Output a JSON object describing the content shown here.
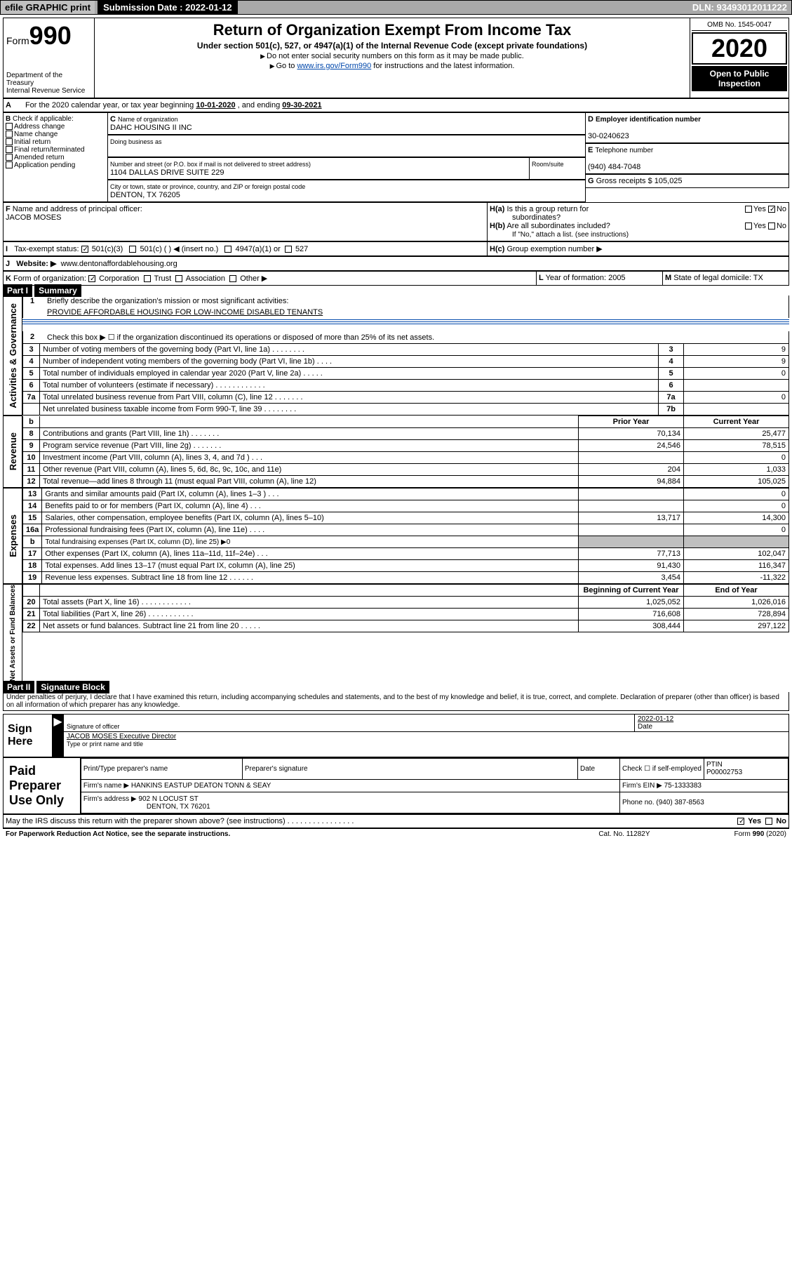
{
  "topbar": {
    "efile": "efile GRAPHIC print",
    "subdate_label": "Submission Date : ",
    "subdate": "2022-01-12",
    "dln_label": "DLN: ",
    "dln": "93493012011222"
  },
  "header": {
    "form_prefix": "Form",
    "form_num": "990",
    "dept1": "Department of the Treasury",
    "dept2": "Internal Revenue Service",
    "title": "Return of Organization Exempt From Income Tax",
    "sub": "Under section 501(c), 527, or 4947(a)(1) of the Internal Revenue Code (except private foundations)",
    "note1": "Do not enter social security numbers on this form as it may be made public.",
    "note2_pre": "Go to ",
    "note2_link": "www.irs.gov/Form990",
    "note2_post": " for instructions and the latest information.",
    "omb": "OMB No. 1545-0047",
    "year": "2020",
    "inspection": "Open to Public Inspection"
  },
  "A": {
    "text": "For the 2020 calendar year, or tax year beginning ",
    "begin": "10-01-2020",
    "mid": " , and ending ",
    "end": "09-30-2021"
  },
  "B": {
    "label": "Check if applicable:",
    "items": [
      "Address change",
      "Name change",
      "Initial return",
      "Final return/terminated",
      "Amended return",
      "Application pending"
    ]
  },
  "C": {
    "name_label": "Name of organization",
    "name": "DAHC HOUSING II INC",
    "dba_label": "Doing business as",
    "dba": "",
    "addr_label": "Number and street (or P.O. box if mail is not delivered to street address)",
    "room_label": "Room/suite",
    "addr": "1104 DALLAS DRIVE SUITE 229",
    "city_label": "City or town, state or province, country, and ZIP or foreign postal code",
    "city": "DENTON, TX  76205"
  },
  "D": {
    "label": "Employer identification number",
    "val": "30-0240623"
  },
  "E": {
    "label": "Telephone number",
    "val": "(940) 484-7048"
  },
  "G": {
    "label": "Gross receipts $",
    "val": "105,025"
  },
  "F": {
    "label": "Name and address of principal officer:",
    "name": "JACOB MOSES"
  },
  "H": {
    "a": "Is this a group return for",
    "a2": "subordinates?",
    "b": "Are all subordinates included?",
    "b_note": "If \"No,\" attach a list. (see instructions)",
    "c": "Group exemption number ▶",
    "yes": "Yes",
    "no": "No"
  },
  "I": {
    "label": "Tax-exempt status:",
    "opts": [
      "501(c)(3)",
      "501(c) (   ) ◀ (insert no.)",
      "4947(a)(1) or",
      "527"
    ]
  },
  "J": {
    "label": "Website: ▶",
    "val": "www.dentonaffordablehousing.org"
  },
  "K": {
    "label": "Form of organization:",
    "opts": [
      "Corporation",
      "Trust",
      "Association",
      "Other ▶"
    ]
  },
  "L": {
    "label": "Year of formation:",
    "val": "2005"
  },
  "M": {
    "label": "State of legal domicile:",
    "val": "TX"
  },
  "partI": {
    "title": "Part I",
    "sub": "Summary",
    "side1": "Activities & Governance",
    "side2": "Revenue",
    "side3": "Expenses",
    "side4": "Net Assets or Fund Balances",
    "q1": "Briefly describe the organization's mission or most significant activities:",
    "q1a": "PROVIDE AFFORDABLE HOUSING FOR LOW-INCOME DISABLED TENANTS",
    "q2": "Check this box ▶ ☐  if the organization discontinued its operations or disposed of more than 25% of its net assets.",
    "lines_gov": [
      {
        "n": "3",
        "t": "Number of voting members of the governing body (Part VI, line 1a)   .    .    .    .    .    .    .    .",
        "b": "3",
        "v": "9"
      },
      {
        "n": "4",
        "t": "Number of independent voting members of the governing body (Part VI, line 1b)   .    .    .    .",
        "b": "4",
        "v": "9"
      },
      {
        "n": "5",
        "t": "Total number of individuals employed in calendar year 2020 (Part V, line 2a)   .    .    .    .    .",
        "b": "5",
        "v": "0"
      },
      {
        "n": "6",
        "t": "Total number of volunteers (estimate if necessary)   .    .    .    .    .    .    .    .    .    .    .    .",
        "b": "6",
        "v": ""
      },
      {
        "n": "7a",
        "t": "Total unrelated business revenue from Part VIII, column (C), line 12   .    .    .    .    .    .    .",
        "b": "7a",
        "v": "0"
      },
      {
        "n": "",
        "t": "Net unrelated business taxable income from Form 990-T, line 39   .    .    .    .    .    .    .    .",
        "b": "7b",
        "v": ""
      }
    ],
    "col_prior": "Prior Year",
    "col_current": "Current Year",
    "col_bcy": "Beginning of Current Year",
    "col_eoy": "End of Year",
    "rev": [
      {
        "n": "8",
        "t": "Contributions and grants (Part VIII, line 1h)   .    .    .    .    .    .    .",
        "p": "70,134",
        "c": "25,477"
      },
      {
        "n": "9",
        "t": "Program service revenue (Part VIII, line 2g)   .    .    .    .    .    .    .",
        "p": "24,546",
        "c": "78,515"
      },
      {
        "n": "10",
        "t": "Investment income (Part VIII, column (A), lines 3, 4, and 7d )    .    .    .",
        "p": "",
        "c": "0"
      },
      {
        "n": "11",
        "t": "Other revenue (Part VIII, column (A), lines 5, 6d, 8c, 9c, 10c, and 11e)",
        "p": "204",
        "c": "1,033"
      },
      {
        "n": "12",
        "t": "Total revenue—add lines 8 through 11 (must equal Part VIII, column (A), line 12)",
        "p": "94,884",
        "c": "105,025"
      }
    ],
    "exp": [
      {
        "n": "13",
        "t": "Grants and similar amounts paid (Part IX, column (A), lines 1–3 )   .    .    .",
        "p": "",
        "c": "0"
      },
      {
        "n": "14",
        "t": "Benefits paid to or for members (Part IX, column (A), line 4)   .    .    .",
        "p": "",
        "c": "0"
      },
      {
        "n": "15",
        "t": "Salaries, other compensation, employee benefits (Part IX, column (A), lines 5–10)",
        "p": "13,717",
        "c": "14,300"
      },
      {
        "n": "16a",
        "t": "Professional fundraising fees (Part IX, column (A), line 11e)   .    .    .    .",
        "p": "",
        "c": "0"
      },
      {
        "n": "b",
        "t": "Total fundraising expenses (Part IX, column (D), line 25) ▶0",
        "p": "GRAY",
        "c": "GRAY"
      },
      {
        "n": "17",
        "t": "Other expenses (Part IX, column (A), lines 11a–11d, 11f–24e)   .    .    .",
        "p": "77,713",
        "c": "102,047"
      },
      {
        "n": "18",
        "t": "Total expenses. Add lines 13–17 (must equal Part IX, column (A), line 25)",
        "p": "91,430",
        "c": "116,347"
      },
      {
        "n": "19",
        "t": "Revenue less expenses. Subtract line 18 from line 12   .    .    .    .    .    .",
        "p": "3,454",
        "c": "-11,322"
      }
    ],
    "net": [
      {
        "n": "20",
        "t": "Total assets (Part X, line 16)   .    .    .    .    .    .    .    .    .    .    .    .",
        "p": "1,025,052",
        "c": "1,026,016"
      },
      {
        "n": "21",
        "t": "Total liabilities (Part X, line 26)   .    .    .    .    .    .    .    .    .    .    .",
        "p": "716,608",
        "c": "728,894"
      },
      {
        "n": "22",
        "t": "Net assets or fund balances. Subtract line 21 from line 20   .    .    .    .    .",
        "p": "308,444",
        "c": "297,122"
      }
    ]
  },
  "partII": {
    "title": "Part II",
    "sub": "Signature Block",
    "penalty": "Under penalties of perjury, I declare that I have examined this return, including accompanying schedules and statements, and to the best of my knowledge and belief, it is true, correct, and complete. Declaration of preparer (other than officer) is based on all information of which preparer has any knowledge.",
    "sign_here": "Sign Here",
    "sig_officer": "Signature of officer",
    "date": "Date",
    "sig_date": "2022-01-12",
    "officer_name": "JACOB MOSES  Executive Director",
    "type_print": "Type or print name and title",
    "paid": "Paid Preparer Use Only",
    "pt_name": "Print/Type preparer's name",
    "pt_sig": "Preparer's signature",
    "pt_date": "Date",
    "pt_check": "Check ☐ if self-employed",
    "ptin_label": "PTIN",
    "ptin": "P00002753",
    "firm_name_l": "Firm's name    ▶",
    "firm_name": "HANKINS EASTUP DEATON TONN & SEAY",
    "firm_ein_l": "Firm's EIN ▶",
    "firm_ein": "75-1333383",
    "firm_addr_l": "Firm's address ▶",
    "firm_addr1": "902 N LOCUST ST",
    "firm_addr2": "DENTON, TX  76201",
    "phone_l": "Phone no.",
    "phone": "(940) 387-8563",
    "irs_discuss": "May the IRS discuss this return with the preparer shown above? (see instructions)   .    .    .    .    .    .    .    .    .    .    .    .    .    .    .    .",
    "pra": "For Paperwork Reduction Act Notice, see the separate instructions.",
    "catno": "Cat. No. 11282Y",
    "formno": "Form 990 (2020)"
  }
}
